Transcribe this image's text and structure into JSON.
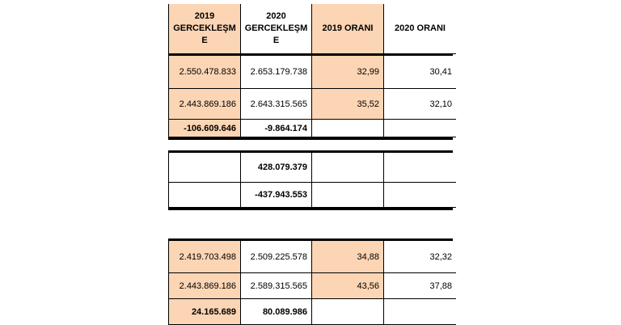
{
  "table": {
    "header": [
      [
        "2019",
        "GERCEKLEŞM",
        "E"
      ],
      [
        "2020",
        "GERCEKLEŞM",
        "E"
      ],
      [
        "2019 ORANI"
      ],
      [
        "2020 ORANI"
      ]
    ],
    "sections": [
      [
        [
          "2.550.478.833",
          "2.653.179.738",
          "32,99",
          "30,41"
        ],
        [
          "2.443.869.186",
          "2.643.315.565",
          "35,52",
          "32,10"
        ],
        [
          "-106.609.646",
          "-9.864.174",
          null,
          null
        ]
      ],
      [
        [
          null,
          "428.079.379",
          null,
          null
        ],
        [
          null,
          "-437.943.553",
          null,
          null
        ]
      ],
      [
        [
          "2.419.703.498",
          "2.509.225.578",
          "34,88",
          "32,32"
        ],
        [
          "2.443.869.186",
          "2.589.315.565",
          "43,56",
          "37,88"
        ],
        [
          "24.165.689",
          "80.089.986",
          null,
          null
        ]
      ]
    ]
  }
}
